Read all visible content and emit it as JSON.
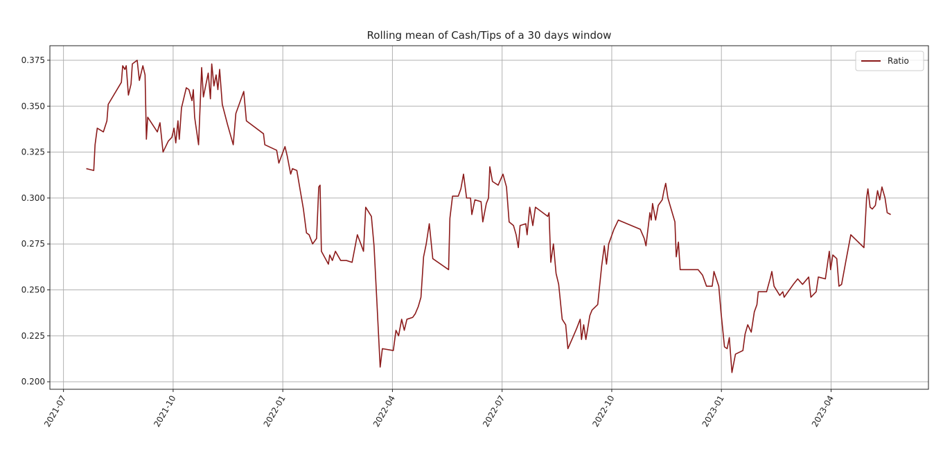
{
  "chart_data": {
    "type": "line",
    "title": "Rolling mean of Cash/Tips of a 30 days window",
    "x": [
      2021.552,
      2021.569,
      2021.572,
      2021.577,
      2021.591,
      2021.599,
      2021.602,
      2021.632,
      2021.635,
      2021.64,
      2021.643,
      2021.648,
      2021.654,
      2021.657,
      2021.668,
      2021.673,
      2021.681,
      2021.686,
      2021.689,
      2021.692,
      2021.703,
      2021.714,
      2021.72,
      2021.727,
      2021.739,
      2021.747,
      2021.752,
      2021.756,
      2021.761,
      2021.764,
      2021.769,
      2021.78,
      2021.786,
      2021.793,
      2021.796,
      2021.799,
      2021.808,
      2021.815,
      2021.819,
      2021.83,
      2021.835,
      2021.838,
      2021.843,
      2021.848,
      2021.852,
      2021.856,
      2021.862,
      2021.874,
      2021.887,
      2021.893,
      2021.911,
      2021.917,
      2021.956,
      2021.959,
      2021.986,
      2021.991,
      2022.005,
      2022.01,
      2022.018,
      2022.022,
      2022.032,
      2022.047,
      2022.054,
      2022.06,
      2022.068,
      2022.077,
      2022.082,
      2022.085,
      2022.088,
      2022.104,
      2022.107,
      2022.113,
      2022.12,
      2022.132,
      2022.145,
      2022.158,
      2022.17,
      2022.178,
      2022.184,
      2022.189,
      2022.202,
      2022.208,
      2022.214,
      2022.222,
      2022.227,
      2022.252,
      2022.258,
      2022.264,
      2022.271,
      2022.277,
      2022.283,
      2022.296,
      2022.302,
      2022.309,
      2022.315,
      2022.321,
      2022.327,
      2022.334,
      2022.342,
      2022.378,
      2022.381,
      2022.387,
      2022.4,
      2022.406,
      2022.412,
      2022.419,
      2022.428,
      2022.431,
      2022.438,
      2022.452,
      2022.456,
      2022.464,
      2022.469,
      2022.472,
      2022.478,
      2022.491,
      2022.502,
      2022.51,
      2022.516,
      2022.526,
      2022.532,
      2022.537,
      2022.541,
      2022.554,
      2022.557,
      2022.563,
      2022.57,
      2022.576,
      2022.604,
      2022.607,
      2022.611,
      2022.617,
      2022.623,
      2022.629,
      2022.637,
      2022.645,
      2022.65,
      2022.661,
      2022.67,
      2022.678,
      2022.681,
      2022.686,
      2022.691,
      2022.7,
      2022.705,
      2022.718,
      2022.727,
      2022.733,
      2022.738,
      2022.743,
      2022.755,
      2022.765,
      2022.815,
      2022.824,
      2022.828,
      2022.837,
      2022.84,
      2022.843,
      2022.85,
      2022.856,
      2022.865,
      2022.869,
      2022.873,
      2022.878,
      2022.894,
      2022.897,
      2022.902,
      2022.906,
      2022.947,
      2022.957,
      2022.966,
      2022.979,
      2022.983,
      2022.994,
      2022.999,
      2023.007,
      2023.013,
      2023.018,
      2023.024,
      2023.032,
      2023.049,
      2023.054,
      2023.06,
      2023.068,
      2023.075,
      2023.081,
      2023.084,
      2023.103,
      2023.111,
      2023.115,
      2023.12,
      2023.133,
      2023.14,
      2023.143,
      2023.164,
      2023.174,
      2023.185,
      2023.199,
      2023.204,
      2023.216,
      2023.221,
      2023.237,
      2023.246,
      2023.249,
      2023.254,
      2023.263,
      2023.268,
      2023.274,
      2023.284,
      2023.295,
      2023.325,
      2023.331,
      2023.334,
      2023.339,
      2023.344,
      2023.351,
      2023.356,
      2023.361,
      2023.366,
      2023.373,
      2023.378,
      2023.386
    ],
    "series": [
      {
        "name": "Ratio",
        "color": "#8b1a1a",
        "values": [
          0.316,
          0.315,
          0.329,
          0.338,
          0.336,
          0.342,
          0.351,
          0.363,
          0.372,
          0.37,
          0.372,
          0.356,
          0.362,
          0.373,
          0.375,
          0.364,
          0.372,
          0.367,
          0.332,
          0.344,
          0.34,
          0.336,
          0.341,
          0.325,
          0.331,
          0.333,
          0.338,
          0.33,
          0.342,
          0.332,
          0.349,
          0.36,
          0.359,
          0.353,
          0.359,
          0.344,
          0.329,
          0.371,
          0.355,
          0.368,
          0.354,
          0.373,
          0.361,
          0.367,
          0.359,
          0.37,
          0.351,
          0.34,
          0.329,
          0.346,
          0.358,
          0.342,
          0.335,
          0.329,
          0.326,
          0.319,
          0.328,
          0.323,
          0.313,
          0.316,
          0.315,
          0.294,
          0.281,
          0.28,
          0.275,
          0.278,
          0.306,
          0.307,
          0.271,
          0.264,
          0.269,
          0.266,
          0.271,
          0.266,
          0.266,
          0.265,
          0.28,
          0.275,
          0.271,
          0.295,
          0.29,
          0.274,
          0.246,
          0.208,
          0.218,
          0.217,
          0.228,
          0.225,
          0.234,
          0.228,
          0.234,
          0.235,
          0.237,
          0.241,
          0.246,
          0.268,
          0.275,
          0.286,
          0.267,
          0.261,
          0.289,
          0.301,
          0.301,
          0.305,
          0.313,
          0.3,
          0.3,
          0.291,
          0.299,
          0.298,
          0.287,
          0.297,
          0.3,
          0.317,
          0.309,
          0.307,
          0.313,
          0.306,
          0.287,
          0.285,
          0.28,
          0.273,
          0.285,
          0.286,
          0.28,
          0.295,
          0.285,
          0.295,
          0.29,
          0.292,
          0.265,
          0.275,
          0.259,
          0.253,
          0.234,
          0.231,
          0.218,
          0.224,
          0.229,
          0.234,
          0.223,
          0.231,
          0.223,
          0.236,
          0.239,
          0.242,
          0.263,
          0.274,
          0.264,
          0.275,
          0.283,
          0.288,
          0.283,
          0.278,
          0.274,
          0.292,
          0.288,
          0.297,
          0.288,
          0.296,
          0.299,
          0.304,
          0.308,
          0.3,
          0.287,
          0.268,
          0.276,
          0.261,
          0.261,
          0.258,
          0.252,
          0.252,
          0.26,
          0.252,
          0.238,
          0.219,
          0.218,
          0.224,
          0.205,
          0.215,
          0.217,
          0.226,
          0.231,
          0.227,
          0.238,
          0.242,
          0.249,
          0.249,
          0.256,
          0.26,
          0.252,
          0.247,
          0.249,
          0.246,
          0.253,
          0.256,
          0.253,
          0.257,
          0.246,
          0.249,
          0.257,
          0.256,
          0.271,
          0.261,
          0.269,
          0.267,
          0.252,
          0.253,
          0.266,
          0.28,
          0.273,
          0.3,
          0.305,
          0.295,
          0.294,
          0.296,
          0.304,
          0.299,
          0.306,
          0.3,
          0.292,
          0.291
        ]
      }
    ],
    "xlim": [
      2021.469,
      2023.472
    ],
    "xticks": [
      {
        "value": 2021.5,
        "label": "2021-07"
      },
      {
        "value": 2021.75,
        "label": "2021-10"
      },
      {
        "value": 2022.0,
        "label": "2022-01"
      },
      {
        "value": 2022.25,
        "label": "2022-04"
      },
      {
        "value": 2022.5,
        "label": "2022-07"
      },
      {
        "value": 2022.75,
        "label": "2022-10"
      },
      {
        "value": 2023.0,
        "label": "2023-01"
      },
      {
        "value": 2023.25,
        "label": "2023-04"
      }
    ],
    "ylim": [
      0.1959,
      0.3829
    ],
    "yticks": [
      {
        "value": 0.2,
        "label": "0.200"
      },
      0.225,
      {
        "value": 0.25,
        "label": "0.250"
      },
      0.275,
      {
        "value": 0.3,
        "label": "0.300"
      },
      0.325,
      {
        "value": 0.35,
        "label": "0.350"
      },
      0.375
    ],
    "grid": true,
    "legend": "upper right"
  }
}
